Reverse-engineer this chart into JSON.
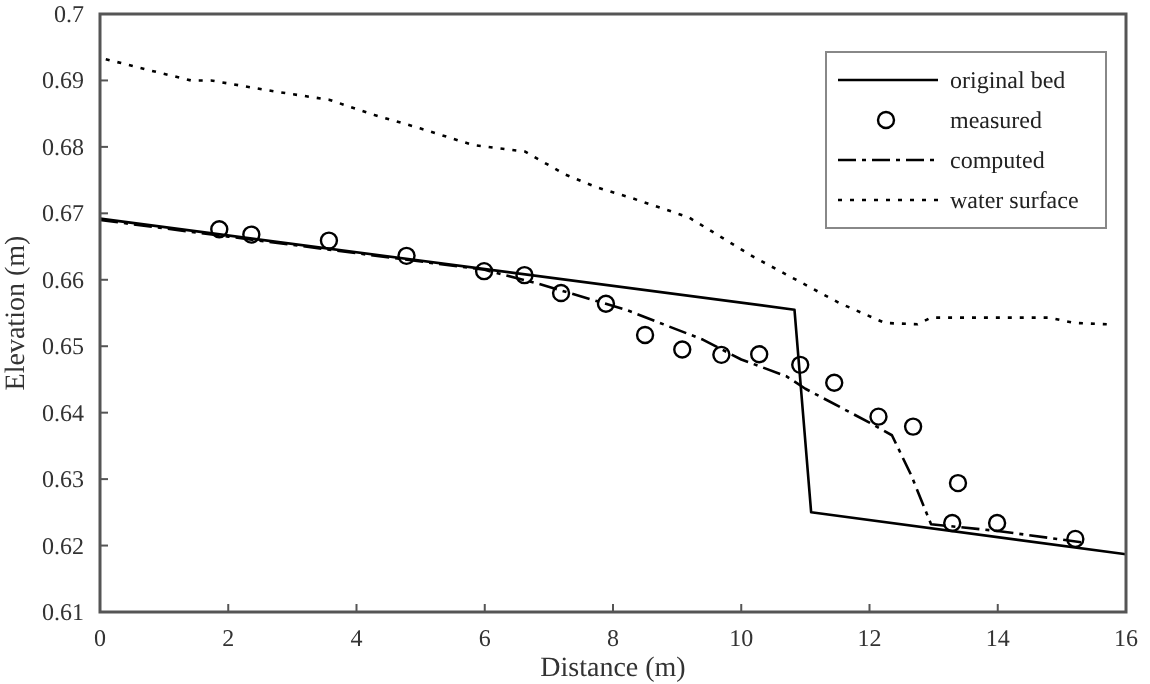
{
  "chart_data": {
    "type": "line",
    "xlabel": "Distance (m)",
    "ylabel": "Elevation (m)",
    "xlim": [
      0,
      16
    ],
    "xticks": [
      0,
      2,
      4,
      6,
      8,
      10,
      12,
      14,
      16
    ],
    "ylim": [
      0.61,
      0.7
    ],
    "yticks": [
      0.61,
      0.62,
      0.63,
      0.64,
      0.65,
      0.66,
      0.67,
      0.68,
      0.69,
      0.7
    ],
    "grid": false,
    "legend": "top right",
    "series": [
      {
        "name": "original bed",
        "color": "#000000",
        "line_style": "solid",
        "x": [
          0,
          10.83,
          11.09,
          16
        ],
        "values": [
          0.6692,
          0.6555,
          0.625,
          0.6187
        ]
      },
      {
        "name": "measured",
        "type": "scatter",
        "color": "#000000",
        "marker": "circle",
        "x": [
          1.86,
          2.36,
          3.57,
          4.78,
          5.99,
          6.62,
          7.19,
          7.89,
          8.5,
          9.08,
          9.69,
          10.28,
          10.92,
          11.45,
          12.14,
          12.68,
          13.38,
          13.29,
          13.99,
          15.21
        ],
        "values": [
          0.6676,
          0.6668,
          0.6659,
          0.6636,
          0.6613,
          0.6607,
          0.658,
          0.6564,
          0.6517,
          0.6495,
          0.6487,
          0.6488,
          0.6472,
          0.6445,
          0.6394,
          0.6379,
          0.6294,
          0.6234,
          0.6234,
          0.621
        ]
      },
      {
        "name": "computed",
        "color": "#000000",
        "line_style": "dashdot",
        "x": [
          0,
          2,
          4,
          6,
          6.8,
          8.2,
          9.4,
          10,
          10.7,
          11,
          12,
          12.35,
          12.65,
          12.96,
          14,
          15.3
        ],
        "values": [
          0.669,
          0.6665,
          0.664,
          0.6615,
          0.6595,
          0.6555,
          0.651,
          0.648,
          0.6455,
          0.6436,
          0.6385,
          0.6366,
          0.6306,
          0.6232,
          0.6222,
          0.6205
        ]
      },
      {
        "name": "water surface",
        "color": "#000000",
        "line_style": "dotted",
        "x": [
          0.09,
          0.7,
          1.42,
          1.73,
          2.75,
          3.57,
          4.28,
          4.99,
          5.81,
          6.63,
          7.24,
          7.75,
          8.26,
          9.18,
          10.2,
          11.53,
          12.24,
          12.75,
          12.96,
          14.8,
          15.2,
          15.7
        ],
        "values": [
          0.6932,
          0.6917,
          0.69,
          0.69,
          0.6883,
          0.6871,
          0.6848,
          0.6828,
          0.6803,
          0.6793,
          0.6759,
          0.6739,
          0.6724,
          0.6694,
          0.6634,
          0.6565,
          0.6535,
          0.6533,
          0.6543,
          0.6543,
          0.6535,
          0.6533
        ]
      }
    ]
  }
}
